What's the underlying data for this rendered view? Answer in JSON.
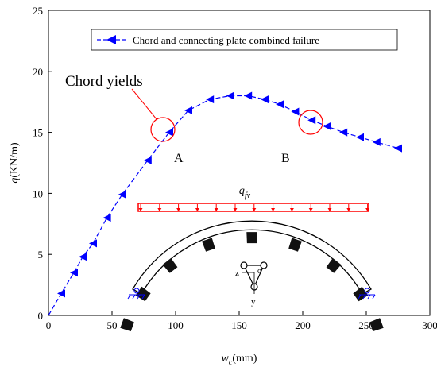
{
  "chart_data": {
    "type": "line",
    "xlabel": "w_c(mm)",
    "ylabel": "q(KN/m)",
    "xlabel_parts": {
      "main": "w",
      "sub": "c",
      "unit": "(mm)"
    },
    "ylabel_parts": {
      "main": "q",
      "unit": "(KN/m)"
    },
    "xlim": [
      0,
      300
    ],
    "ylim": [
      0,
      25
    ],
    "x_ticks": [
      0,
      50,
      100,
      150,
      200,
      250,
      300
    ],
    "y_ticks": [
      0,
      5,
      10,
      15,
      20,
      25
    ],
    "grid": false,
    "legend_position": "top-right",
    "series": [
      {
        "name": "Chord and connecting plate combined failure",
        "color": "#0000ff",
        "marker": "left-triangle",
        "x": [
          10,
          20,
          27,
          35,
          46,
          58,
          78,
          95,
          110,
          127,
          143,
          157,
          170,
          182,
          194,
          207,
          219,
          232,
          245,
          258,
          275
        ],
        "y": [
          1.8,
          3.5,
          4.8,
          5.9,
          8.0,
          9.9,
          12.7,
          15.0,
          16.8,
          17.7,
          18.0,
          18.0,
          17.7,
          17.3,
          16.7,
          16.0,
          15.5,
          15.0,
          14.6,
          14.2,
          13.7
        ]
      }
    ],
    "annotations": {
      "chord_yields": "Chord yields",
      "point_a": "A",
      "point_b": "B",
      "load_label_main": "q",
      "load_label_sub": "fv",
      "section_z": "z",
      "section_o": "o",
      "section_y": "y"
    }
  }
}
